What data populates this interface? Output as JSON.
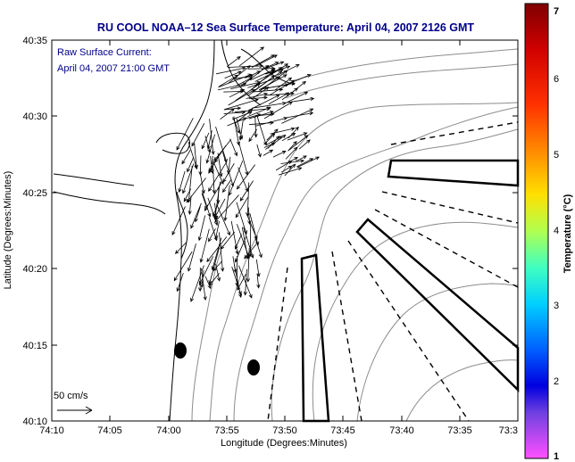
{
  "title": "RU COOL  NOAA–12  Sea Surface Temperature:  April 04, 2007 2126 GMT",
  "current_label_line1": "Raw Surface Current:",
  "current_label_line2": "April 04, 2007 21:00 GMT",
  "scale_label": "50 cm/s",
  "y_axis_label": "Latitude (Degrees:Minutes)",
  "x_axis_label": "Longitude (Degrees:Minutes)",
  "colorbar_label": "Temperature (°C)",
  "y_ticks": [
    "40:35",
    "40:30",
    "40:25",
    "40:20",
    "40:15",
    "40:10"
  ],
  "x_ticks": [
    "74:10",
    "74:05",
    "74:00",
    "73:55",
    "73:50",
    "73:45",
    "73:40",
    "73:35",
    "73:3"
  ],
  "colorbar_ticks": [
    "7",
    "6",
    "5",
    "4",
    "3",
    "2",
    "1"
  ],
  "colors": {
    "title": "#00008b",
    "frame": "#000000",
    "coast": "#000000",
    "bathymetry": "#808080"
  },
  "colorbar_colors": [
    "#7f0000",
    "#c80000",
    "#ff2000",
    "#ff8000",
    "#ffd800",
    "#c0ff40",
    "#40ffc0",
    "#00e0ff",
    "#0080ff",
    "#0000ff",
    "#0000a0",
    "#a040ff",
    "#ff40ff"
  ]
}
